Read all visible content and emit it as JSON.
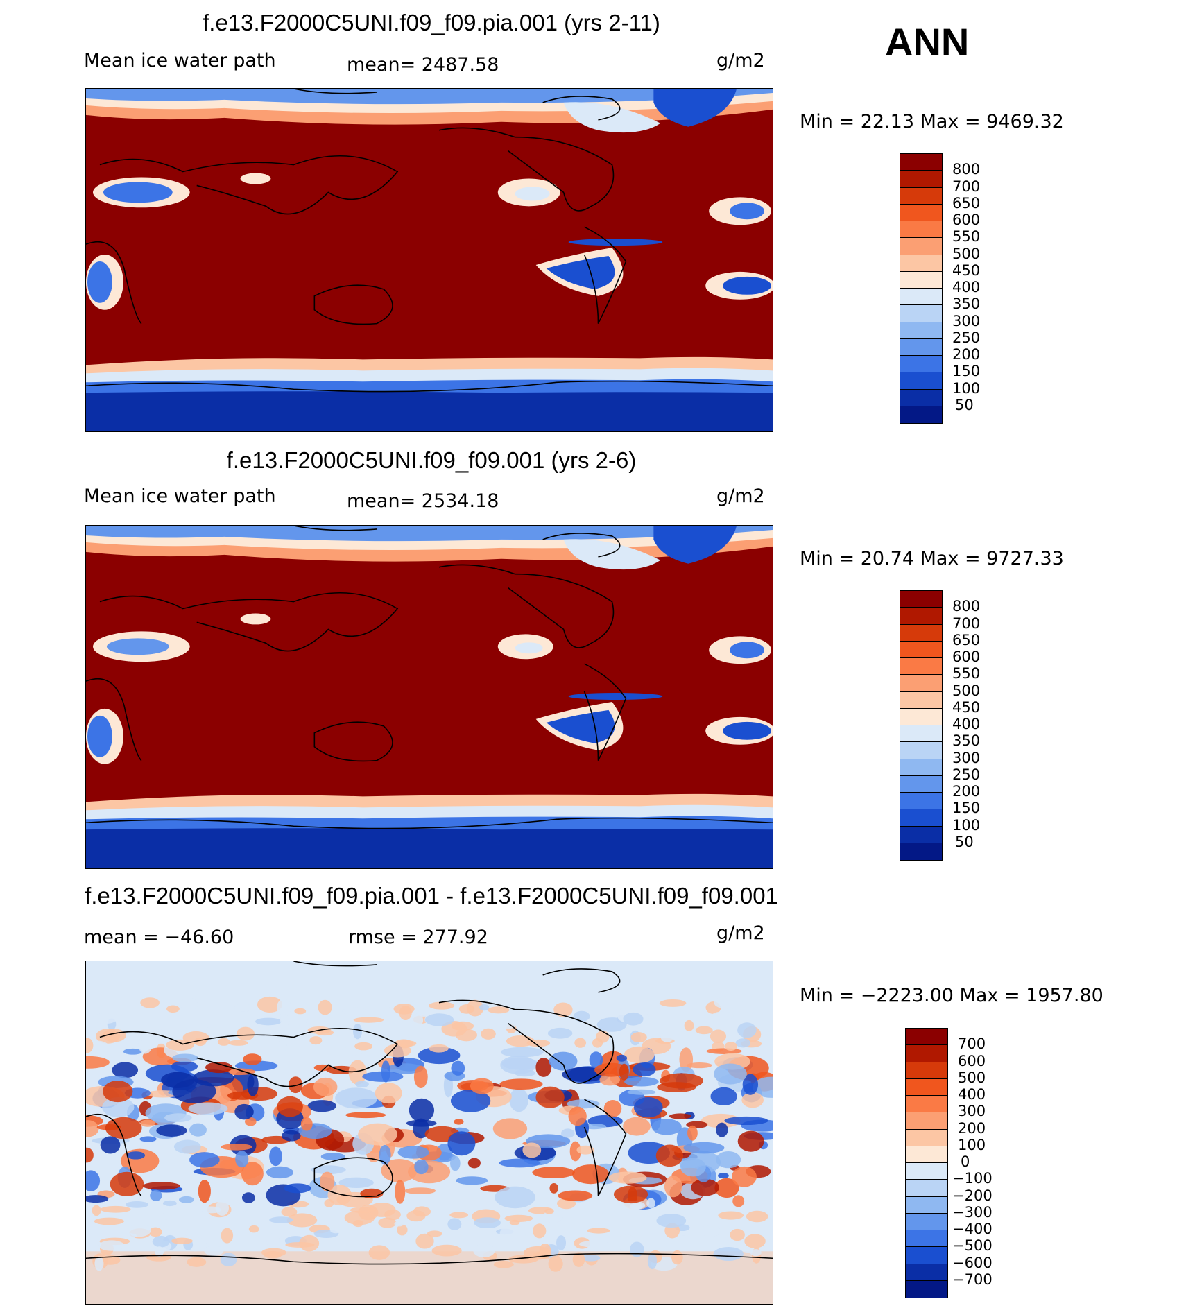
{
  "season": "ANN",
  "panels": [
    {
      "title": "f.e13.F2000C5UNI.f09_f09.pia.001 (yrs 2-11)",
      "left_label": "Mean ice water path",
      "center_label": "mean= 2487.58",
      "units": "g/m2",
      "minmax": "Min =   22.13 Max = 9469.32",
      "colorbar": {
        "levels": [
          "800",
          "700",
          "650",
          "600",
          "550",
          "500",
          "450",
          "400",
          "350",
          "300",
          "250",
          "200",
          "150",
          "100",
          "50"
        ],
        "colors": [
          "#8b0000",
          "#b01800",
          "#d63a0a",
          "#f0561e",
          "#fa7a45",
          "#fb9f73",
          "#fcc6a4",
          "#fde8d6",
          "#dbe9f8",
          "#bad4f5",
          "#8fb8f1",
          "#6396ec",
          "#3c74e6",
          "#1a4fd0",
          "#0a2ea6",
          "#031886"
        ]
      }
    },
    {
      "title": "f.e13.F2000C5UNI.f09_f09.001 (yrs 2-6)",
      "left_label": "Mean ice water path",
      "center_label": "mean= 2534.18",
      "units": "g/m2",
      "minmax": "Min =   20.74 Max = 9727.33",
      "colorbar": {
        "levels": [
          "800",
          "700",
          "650",
          "600",
          "550",
          "500",
          "450",
          "400",
          "350",
          "300",
          "250",
          "200",
          "150",
          "100",
          "50"
        ],
        "colors": [
          "#8b0000",
          "#b01800",
          "#d63a0a",
          "#f0561e",
          "#fa7a45",
          "#fb9f73",
          "#fcc6a4",
          "#fde8d6",
          "#dbe9f8",
          "#bad4f5",
          "#8fb8f1",
          "#6396ec",
          "#3c74e6",
          "#1a4fd0",
          "#0a2ea6",
          "#031886"
        ]
      }
    },
    {
      "title": "f.e13.F2000C5UNI.f09_f09.pia.001 - f.e13.F2000C5UNI.f09_f09.001",
      "left_label": "mean = −46.60",
      "center_label": "rmse = 277.92",
      "units": "g/m2",
      "minmax": "Min = −2223.00 Max = 1957.80",
      "colorbar": {
        "levels": [
          "700",
          "600",
          "500",
          "400",
          "300",
          "200",
          "100",
          "0",
          "−100",
          "−200",
          "−300",
          "−400",
          "−500",
          "−600",
          "−700"
        ],
        "colors": [
          "#8b0000",
          "#b01800",
          "#d63a0a",
          "#f0561e",
          "#fa7a45",
          "#fb9f73",
          "#fcc6a4",
          "#fde8d6",
          "#dbe9f8",
          "#bad4f5",
          "#8fb8f1",
          "#6396ec",
          "#3c74e6",
          "#1a4fd0",
          "#0a2ea6",
          "#031886"
        ]
      }
    }
  ],
  "palette": {
    "dark_red": "#8b0000",
    "pale": "#fde8d6",
    "light_blue": "#dbe9f8",
    "mid_blue": "#3c74e6",
    "dark_blue": "#0a2ea6"
  }
}
